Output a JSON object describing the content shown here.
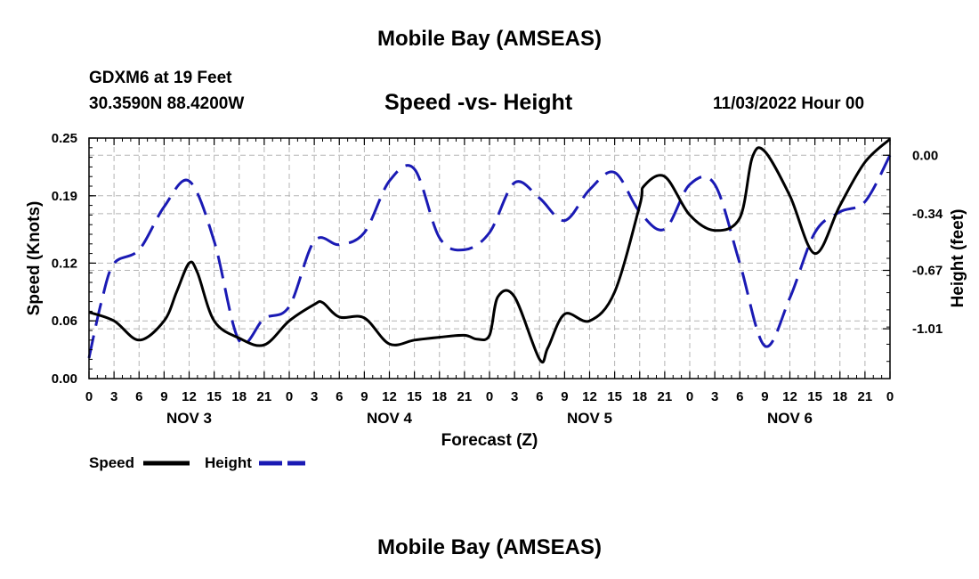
{
  "header": {
    "title": "Mobile Bay (AMSEAS)",
    "station": "GDXM6 at 19 Feet",
    "coords": "30.3590N  88.4200W",
    "subtitle": "Speed -vs- Height",
    "datetime": "11/03/2022 Hour 00",
    "bottom_title": "Mobile Bay (AMSEAS)"
  },
  "chart_data": {
    "type": "line",
    "title": "Speed -vs- Height",
    "xlabel": "Forecast (Z)",
    "ylabel": "Speed (Knots)",
    "y2label": "Height (feet)",
    "xlim": [
      0,
      96
    ],
    "ylim": [
      0,
      0.25
    ],
    "y2lim": [
      -1.3,
      0.1
    ],
    "yticks": [
      "0.00",
      "0.06",
      "0.12",
      "0.19",
      "0.25"
    ],
    "y2ticks": [
      "0.00",
      "-0.34",
      "-0.67",
      "-1.01"
    ],
    "xtick_labels": [
      "0",
      "3",
      "6",
      "9",
      "12",
      "15",
      "18",
      "21",
      "0",
      "3",
      "6",
      "9",
      "12",
      "15",
      "18",
      "21",
      "0",
      "3",
      "6",
      "9",
      "12",
      "15",
      "18",
      "21",
      "0",
      "3",
      "6",
      "9",
      "12",
      "15",
      "18",
      "21",
      "0"
    ],
    "day_labels": [
      "NOV 3",
      "NOV 4",
      "NOV 5",
      "NOV 6"
    ],
    "grid": true,
    "legend_position": "bottom-left",
    "series": [
      {
        "name": "Speed",
        "axis": "left",
        "color": "#000000",
        "style": "solid",
        "x": [
          0,
          3,
          6,
          9,
          10.5,
          12,
          13,
          15,
          18,
          21,
          24,
          27,
          28,
          30,
          33,
          36,
          39,
          42,
          45,
          46.5,
          48,
          49,
          51,
          54,
          55,
          57,
          60,
          63,
          66,
          66.5,
          69,
          72,
          75,
          78,
          79.5,
          81,
          84,
          87,
          90,
          93,
          96
        ],
        "values": [
          0.069,
          0.06,
          0.04,
          0.06,
          0.09,
          0.12,
          0.11,
          0.06,
          0.042,
          0.035,
          0.06,
          0.077,
          0.079,
          0.064,
          0.063,
          0.036,
          0.04,
          0.043,
          0.045,
          0.041,
          0.045,
          0.085,
          0.085,
          0.02,
          0.032,
          0.067,
          0.06,
          0.09,
          0.18,
          0.2,
          0.21,
          0.17,
          0.154,
          0.167,
          0.23,
          0.236,
          0.19,
          0.13,
          0.18,
          0.225,
          0.249
        ]
      },
      {
        "name": "Height",
        "axis": "right",
        "color": "#1a1ab4",
        "style": "dashed",
        "x": [
          0,
          1.5,
          3,
          6,
          9,
          12,
          15,
          18,
          21,
          24,
          27,
          30,
          33,
          36,
          39,
          42,
          45,
          48,
          51,
          54,
          57,
          60,
          63,
          66,
          69,
          72,
          75,
          78,
          81,
          84,
          87,
          90,
          93,
          96
        ],
        "values": [
          -1.18,
          -0.85,
          -0.63,
          -0.55,
          -0.3,
          -0.15,
          -0.5,
          -1.08,
          -0.95,
          -0.88,
          -0.5,
          -0.52,
          -0.45,
          -0.15,
          -0.08,
          -0.48,
          -0.55,
          -0.45,
          -0.16,
          -0.25,
          -0.38,
          -0.2,
          -0.1,
          -0.33,
          -0.43,
          -0.17,
          -0.17,
          -0.63,
          -1.11,
          -0.83,
          -0.45,
          -0.33,
          -0.27,
          0.0
        ]
      }
    ]
  }
}
